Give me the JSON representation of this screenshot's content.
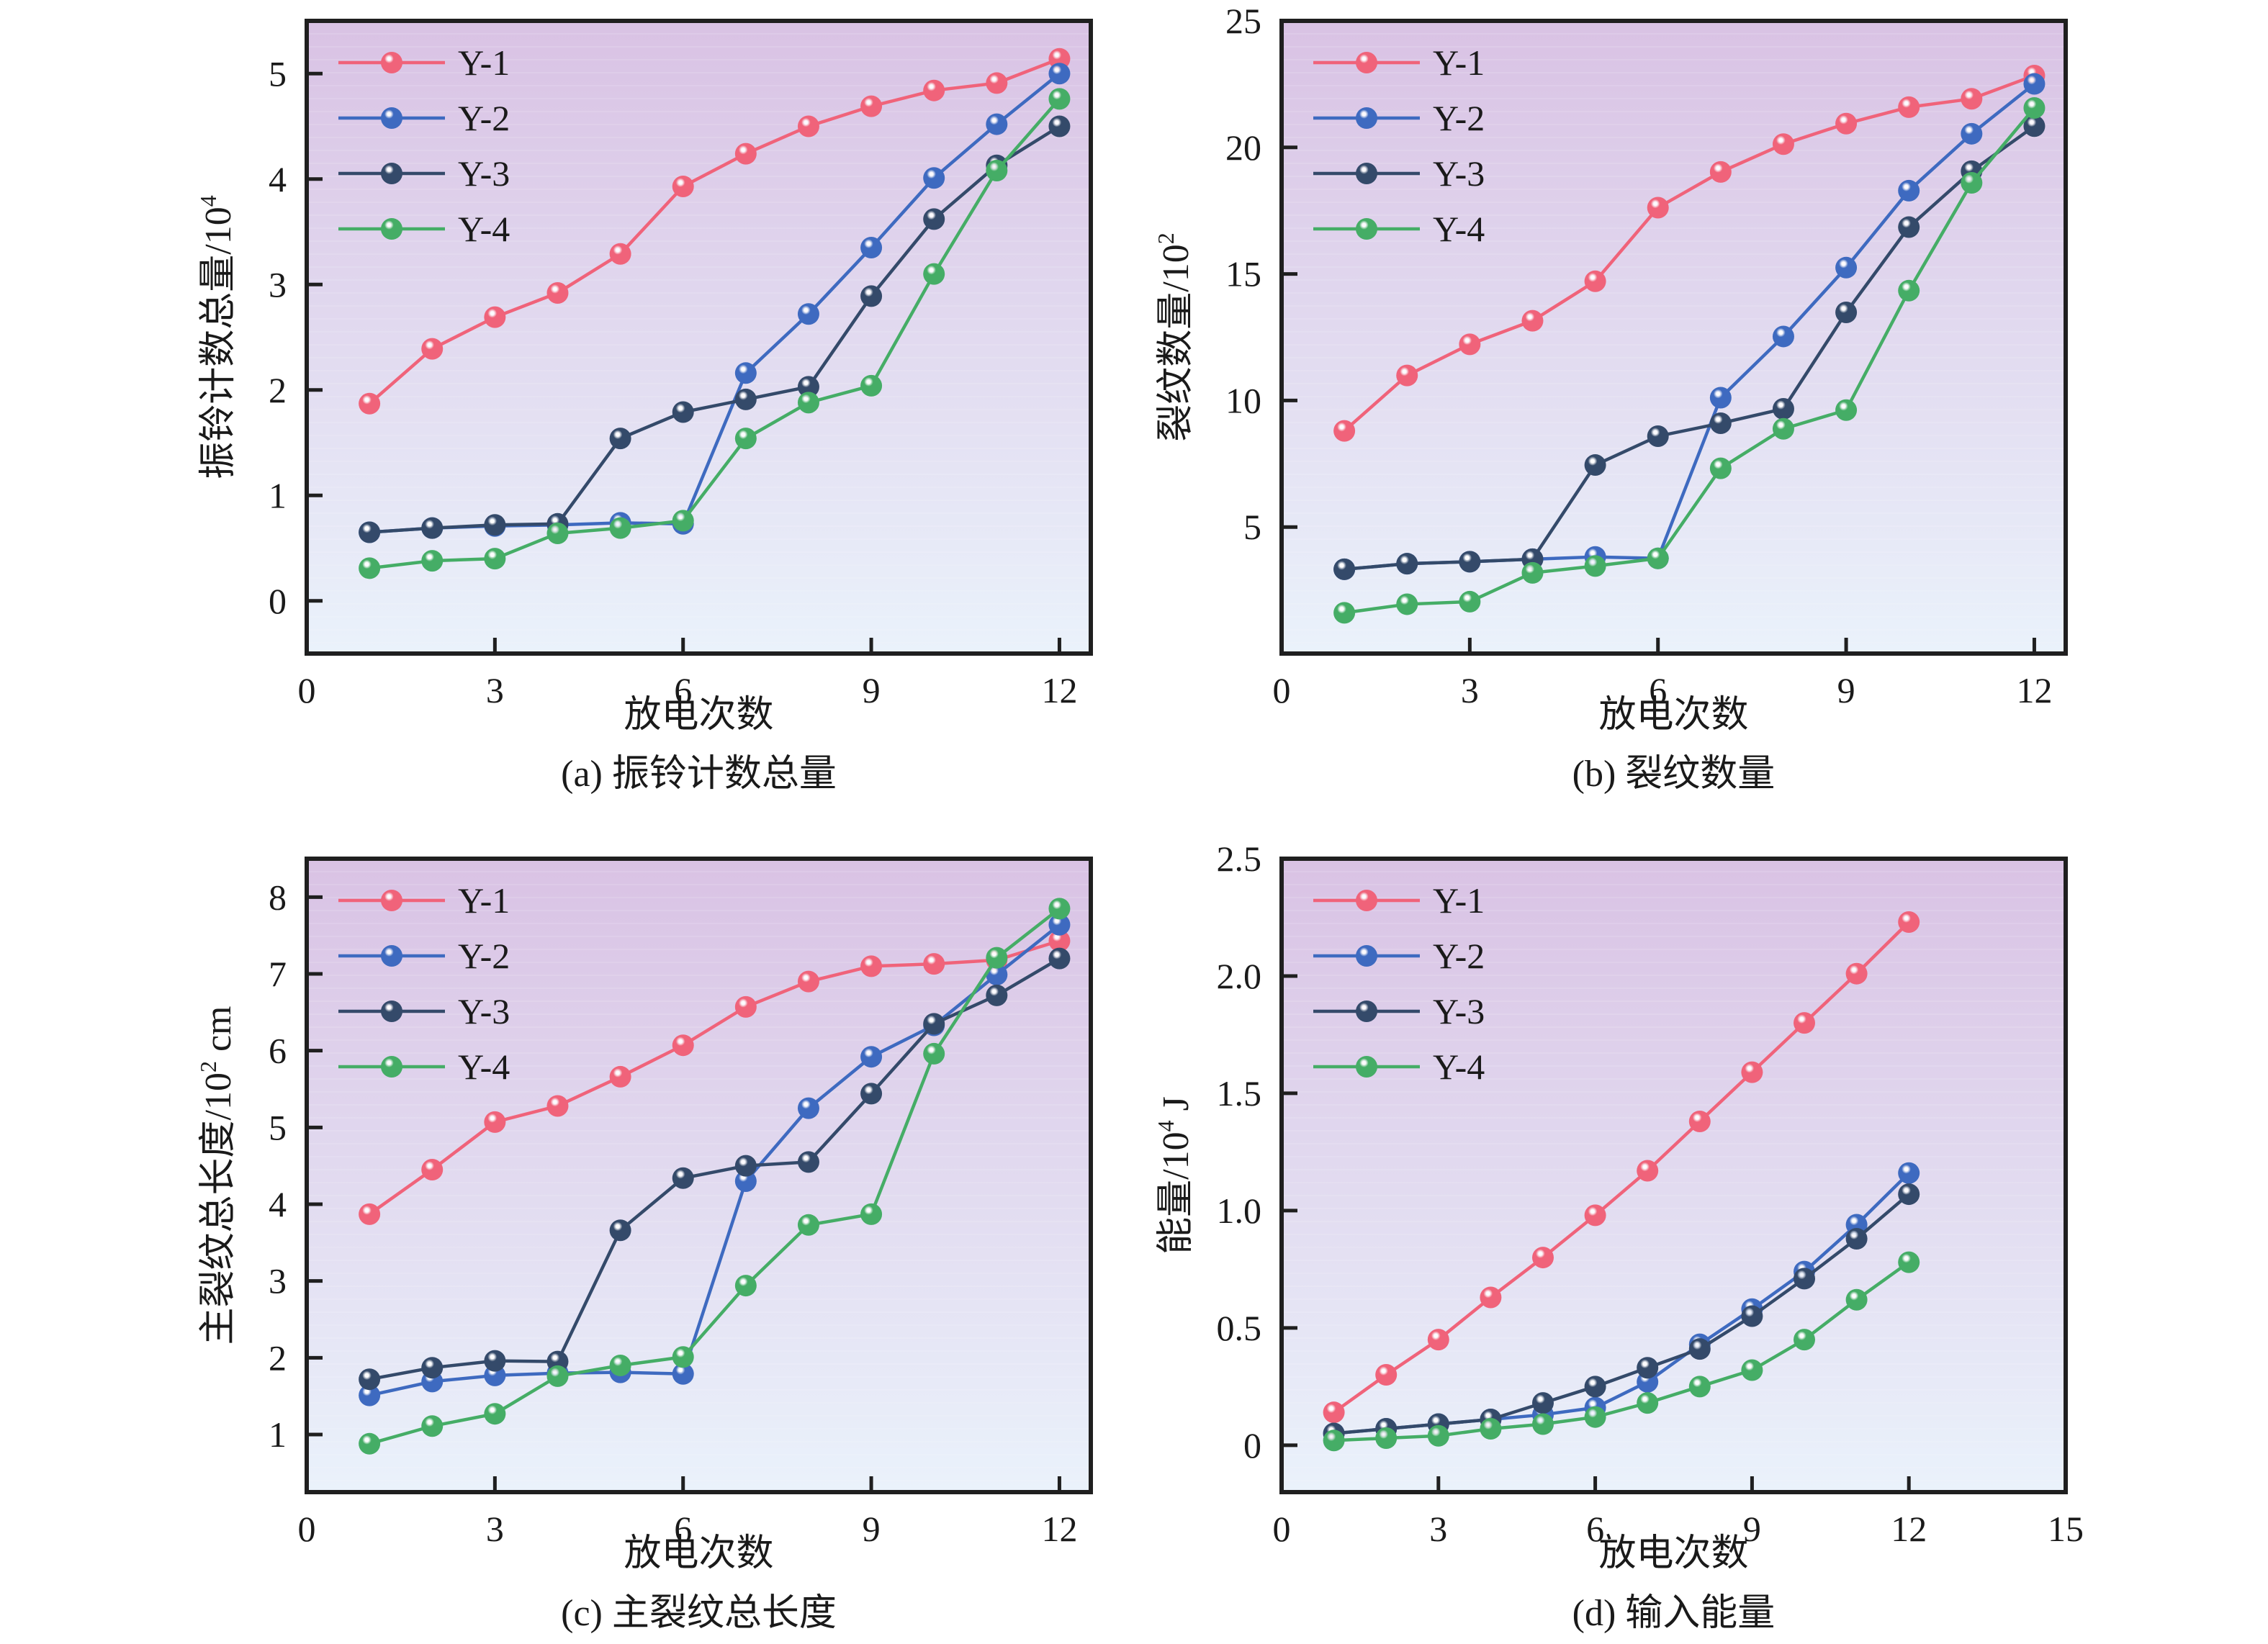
{
  "figure": {
    "colors": {
      "Y-1": "#F0637A",
      "Y-2": "#3E6AC0",
      "Y-3": "#344A6A",
      "Y-4": "#45AD66",
      "bg_top": "#D9C2E4",
      "bg_bottom": "#EAF2FB"
    }
  },
  "chart_data": [
    {
      "id": "a",
      "type": "line",
      "title": "(a) 振铃计数总量",
      "xlabel": "放电次数",
      "ylabel": "振铃计数总量/10",
      "ylabel_sup": "4",
      "xlim": [
        0,
        12.5
      ],
      "ylim": [
        -0.5,
        5.5
      ],
      "xticks": [
        0,
        3,
        6,
        9,
        12
      ],
      "yticks": [
        0,
        1,
        2,
        3,
        4,
        5
      ],
      "ytick_labels": [
        "0",
        "1",
        "2",
        "3",
        "4",
        "5"
      ],
      "legend_position": "top-left",
      "grid": false,
      "x": [
        1,
        2,
        3,
        4,
        5,
        6,
        7,
        8,
        9,
        10,
        11,
        12
      ],
      "series": [
        {
          "name": "Y-1",
          "values": [
            1.87,
            2.39,
            2.69,
            2.92,
            3.29,
            3.93,
            4.24,
            4.5,
            4.69,
            4.84,
            4.91,
            5.14
          ]
        },
        {
          "name": "Y-2",
          "values": [
            0.65,
            0.69,
            0.71,
            0.72,
            0.74,
            0.73,
            2.16,
            2.72,
            3.35,
            4.01,
            4.52,
            5.0
          ]
        },
        {
          "name": "Y-3",
          "values": [
            0.65,
            0.69,
            0.72,
            0.73,
            1.54,
            1.79,
            1.91,
            2.03,
            2.89,
            3.62,
            4.13,
            4.5
          ]
        },
        {
          "name": "Y-4",
          "values": [
            0.31,
            0.38,
            0.4,
            0.64,
            0.69,
            0.76,
            1.54,
            1.88,
            2.04,
            3.1,
            4.08,
            4.76
          ]
        }
      ]
    },
    {
      "id": "b",
      "type": "line",
      "title": "(b) 裂纹数量",
      "xlabel": "放电次数",
      "ylabel": "裂纹数量/10",
      "ylabel_sup": "2",
      "xlim": [
        0,
        12.5
      ],
      "ylim": [
        0,
        25
      ],
      "xticks": [
        0,
        3,
        6,
        9,
        12
      ],
      "yticks": [
        5,
        10,
        15,
        20,
        25
      ],
      "ytick_labels": [
        "5",
        "10",
        "15",
        "20",
        "25"
      ],
      "legend_position": "top-left",
      "grid": false,
      "x": [
        1,
        2,
        3,
        4,
        5,
        6,
        7,
        8,
        9,
        10,
        11,
        12
      ],
      "series": [
        {
          "name": "Y-1",
          "values": [
            8.8,
            10.99,
            12.22,
            13.15,
            14.71,
            17.62,
            19.03,
            20.13,
            20.94,
            21.59,
            21.92,
            22.84
          ]
        },
        {
          "name": "Y-2",
          "values": [
            3.33,
            3.55,
            3.63,
            3.73,
            3.82,
            3.76,
            10.11,
            12.53,
            15.25,
            18.29,
            20.54,
            22.51
          ]
        },
        {
          "name": "Y-3",
          "values": [
            3.33,
            3.55,
            3.63,
            3.73,
            7.45,
            8.59,
            9.1,
            9.67,
            13.48,
            16.85,
            19.06,
            20.84
          ]
        },
        {
          "name": "Y-4",
          "values": [
            1.61,
            1.95,
            2.05,
            3.19,
            3.46,
            3.76,
            7.32,
            8.88,
            9.62,
            14.34,
            18.6,
            21.56
          ]
        }
      ]
    },
    {
      "id": "c",
      "type": "line",
      "title": "(c) 主裂纹总长度",
      "xlabel": "放电次数",
      "ylabel": "主裂纹总长度/10",
      "ylabel_sup": "2",
      "ylabel_suffix": " cm",
      "xlim": [
        0,
        12.5
      ],
      "ylim": [
        0.25,
        8.5
      ],
      "xticks": [
        0,
        3,
        6,
        9,
        12
      ],
      "yticks": [
        1,
        2,
        3,
        4,
        5,
        6,
        7,
        8
      ],
      "ytick_labels": [
        "1",
        "2",
        "3",
        "4",
        "5",
        "6",
        "7",
        "8"
      ],
      "legend_position": "top-left",
      "grid": false,
      "x": [
        1,
        2,
        3,
        4,
        5,
        6,
        7,
        8,
        9,
        10,
        11,
        12
      ],
      "series": [
        {
          "name": "Y-1",
          "values": [
            3.87,
            4.45,
            5.07,
            5.28,
            5.66,
            6.07,
            6.57,
            6.9,
            7.1,
            7.13,
            7.18,
            7.43
          ]
        },
        {
          "name": "Y-2",
          "values": [
            1.51,
            1.69,
            1.77,
            1.8,
            1.81,
            1.79,
            4.3,
            5.25,
            5.92,
            6.33,
            6.99,
            7.64
          ]
        },
        {
          "name": "Y-3",
          "values": [
            1.72,
            1.87,
            1.96,
            1.95,
            3.66,
            4.34,
            4.5,
            4.55,
            5.44,
            6.35,
            6.72,
            7.2
          ]
        },
        {
          "name": "Y-4",
          "values": [
            0.88,
            1.11,
            1.27,
            1.76,
            1.9,
            2.01,
            2.94,
            3.73,
            3.87,
            5.96,
            7.21,
            7.85
          ]
        }
      ]
    },
    {
      "id": "d",
      "type": "line",
      "title": "(d) 输入能量",
      "xlabel": "放电次数",
      "ylabel": "能量/10",
      "ylabel_sup": "4",
      "ylabel_suffix": " J",
      "xlim": [
        0,
        15
      ],
      "ylim": [
        -0.2,
        2.5
      ],
      "xticks": [
        0,
        3,
        6,
        9,
        12,
        15
      ],
      "yticks": [
        0,
        0.5,
        1.0,
        1.5,
        2.0,
        2.5
      ],
      "ytick_labels": [
        "0",
        "0.5",
        "1.0",
        "1.5",
        "2.0",
        "2.5"
      ],
      "legend_position": "top-left",
      "grid": false,
      "x": [
        1,
        2,
        3,
        4,
        5,
        6,
        7,
        8,
        9,
        10,
        11,
        12
      ],
      "series": [
        {
          "name": "Y-1",
          "values": [
            0.14,
            0.3,
            0.45,
            0.63,
            0.8,
            0.98,
            1.17,
            1.38,
            1.59,
            1.8,
            2.01,
            2.23
          ]
        },
        {
          "name": "Y-2",
          "values": [
            0.05,
            0.07,
            0.09,
            0.11,
            0.13,
            0.16,
            0.27,
            0.43,
            0.58,
            0.74,
            0.94,
            1.16
          ]
        },
        {
          "name": "Y-3",
          "values": [
            0.05,
            0.07,
            0.09,
            0.11,
            0.18,
            0.25,
            0.33,
            0.41,
            0.55,
            0.71,
            0.88,
            1.07
          ]
        },
        {
          "name": "Y-4",
          "values": [
            0.02,
            0.03,
            0.04,
            0.07,
            0.09,
            0.12,
            0.18,
            0.25,
            0.32,
            0.45,
            0.62,
            0.78
          ]
        }
      ]
    }
  ]
}
